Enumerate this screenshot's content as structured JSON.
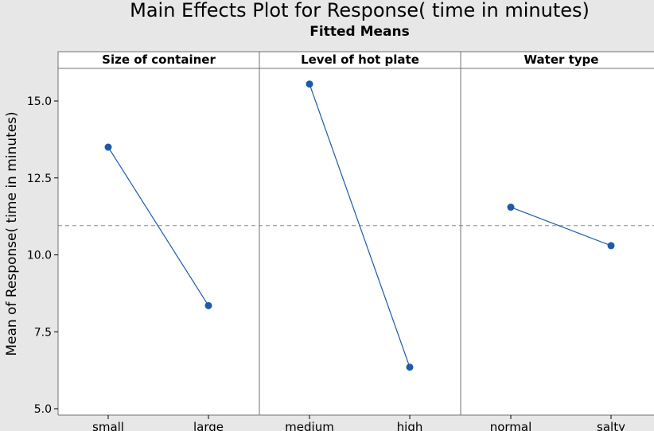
{
  "chart_data": {
    "type": "line",
    "title": "Main Effects Plot for Response( time in minutes)",
    "subtitle": "Fitted Means",
    "ylabel": "Mean of Response( time in minutes)",
    "ylim": [
      5.0,
      16.0
    ],
    "yticks": [
      5.0,
      7.5,
      10.0,
      12.5,
      15.0
    ],
    "yticklabels": [
      "5.0",
      "7.5",
      "10.0",
      "12.5",
      "15.0"
    ],
    "reference_line": 10.95,
    "grid": false,
    "colors": {
      "series": "#1f5aa6",
      "reference": "#8c8c8c",
      "background": "#e7e7e7",
      "panel": "#ffffff"
    },
    "panels": [
      {
        "factor": "Size of container",
        "levels": [
          "small",
          "large"
        ],
        "values": [
          13.5,
          8.35
        ]
      },
      {
        "factor": "Level of hot plate",
        "levels": [
          "medium",
          "high"
        ],
        "values": [
          15.55,
          6.35
        ]
      },
      {
        "factor": "Water type",
        "levels": [
          "normal",
          "salty"
        ],
        "values": [
          11.55,
          10.3
        ]
      }
    ]
  }
}
